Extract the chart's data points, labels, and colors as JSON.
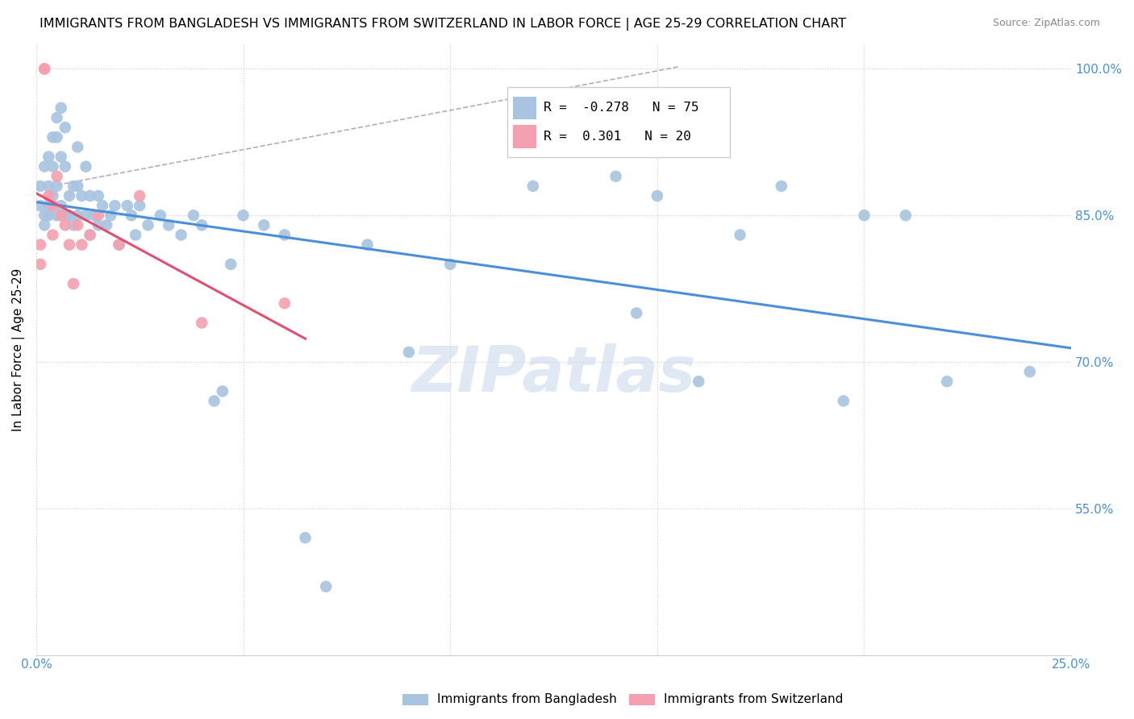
{
  "title": "IMMIGRANTS FROM BANGLADESH VS IMMIGRANTS FROM SWITZERLAND IN LABOR FORCE | AGE 25-29 CORRELATION CHART",
  "source": "Source: ZipAtlas.com",
  "ylabel": "In Labor Force | Age 25-29",
  "xlim": [
    0.0,
    0.25
  ],
  "ylim": [
    0.4,
    1.025
  ],
  "xticks": [
    0.0,
    0.05,
    0.1,
    0.15,
    0.2,
    0.25
  ],
  "yticks": [
    0.55,
    0.7,
    0.85,
    1.0
  ],
  "ytick_labels": [
    "55.0%",
    "70.0%",
    "85.0%",
    "100.0%"
  ],
  "R_bangladesh": -0.278,
  "N_bangladesh": 75,
  "R_switzerland": 0.301,
  "N_switzerland": 20,
  "color_bangladesh": "#a8c4e0",
  "color_switzerland": "#f4a0b0",
  "trendline_bangladesh_color": "#4a90d9",
  "trendline_switzerland_color": "#e05070",
  "trendline_dashed_color": "#b0b0b0",
  "watermark": "ZIPatlas",
  "bangladesh_x": [
    0.001,
    0.001,
    0.002,
    0.002,
    0.002,
    0.003,
    0.003,
    0.003,
    0.003,
    0.004,
    0.004,
    0.004,
    0.005,
    0.005,
    0.005,
    0.005,
    0.006,
    0.006,
    0.006,
    0.007,
    0.007,
    0.007,
    0.008,
    0.008,
    0.009,
    0.009,
    0.01,
    0.01,
    0.01,
    0.011,
    0.012,
    0.012,
    0.013,
    0.013,
    0.014,
    0.015,
    0.015,
    0.016,
    0.017,
    0.018,
    0.019,
    0.02,
    0.022,
    0.023,
    0.024,
    0.025,
    0.027,
    0.03,
    0.032,
    0.035,
    0.038,
    0.04,
    0.043,
    0.045,
    0.047,
    0.05,
    0.055,
    0.06,
    0.065,
    0.07,
    0.08,
    0.09,
    0.1,
    0.12,
    0.14,
    0.145,
    0.15,
    0.16,
    0.17,
    0.18,
    0.195,
    0.2,
    0.21,
    0.22,
    0.24
  ],
  "bangladesh_y": [
    0.88,
    0.86,
    0.9,
    0.85,
    0.84,
    0.91,
    0.88,
    0.86,
    0.85,
    0.93,
    0.9,
    0.87,
    0.95,
    0.93,
    0.88,
    0.85,
    0.96,
    0.91,
    0.86,
    0.94,
    0.9,
    0.85,
    0.87,
    0.85,
    0.88,
    0.84,
    0.92,
    0.88,
    0.85,
    0.87,
    0.9,
    0.85,
    0.87,
    0.83,
    0.85,
    0.87,
    0.84,
    0.86,
    0.84,
    0.85,
    0.86,
    0.82,
    0.86,
    0.85,
    0.83,
    0.86,
    0.84,
    0.85,
    0.84,
    0.83,
    0.85,
    0.84,
    0.66,
    0.67,
    0.8,
    0.85,
    0.84,
    0.83,
    0.52,
    0.47,
    0.82,
    0.71,
    0.8,
    0.88,
    0.89,
    0.75,
    0.87,
    0.68,
    0.83,
    0.88,
    0.66,
    0.85,
    0.85,
    0.68,
    0.69
  ],
  "switzerland_x": [
    0.001,
    0.001,
    0.002,
    0.002,
    0.003,
    0.004,
    0.004,
    0.005,
    0.006,
    0.007,
    0.008,
    0.009,
    0.01,
    0.011,
    0.013,
    0.015,
    0.02,
    0.025,
    0.04,
    0.06
  ],
  "switzerland_y": [
    0.82,
    0.8,
    1.0,
    1.0,
    0.87,
    0.86,
    0.83,
    0.89,
    0.85,
    0.84,
    0.82,
    0.78,
    0.84,
    0.82,
    0.83,
    0.85,
    0.82,
    0.87,
    0.74,
    0.76
  ]
}
